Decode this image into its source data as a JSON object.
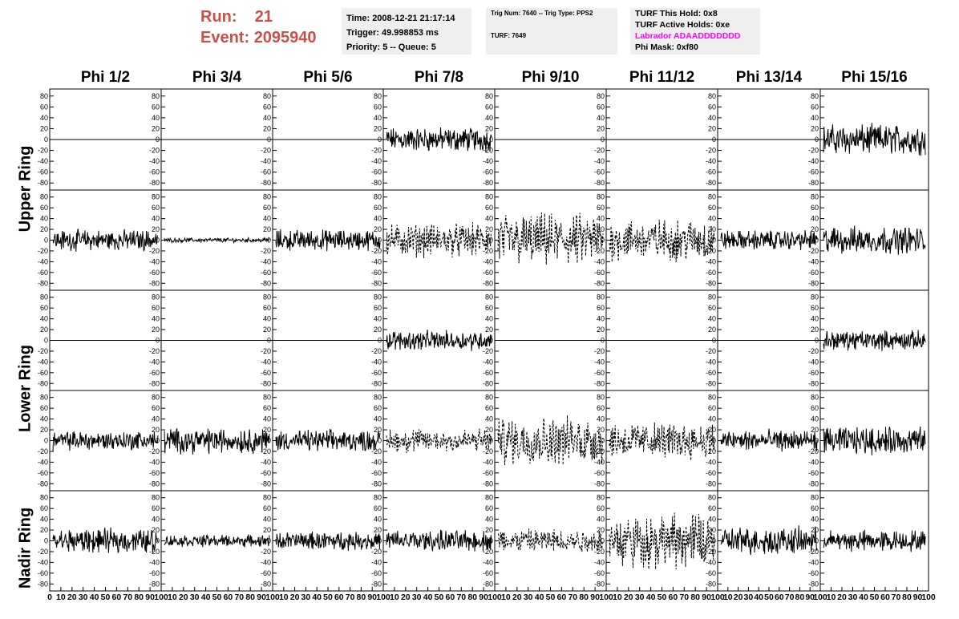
{
  "header": {
    "run_label": "Run:",
    "run_value": "21",
    "event_label": "Event:",
    "event_value": "2095940"
  },
  "time_box": {
    "time": "Time: 2008-12-21 21:17:14",
    "trigger": "Trigger: 49.998853 ms",
    "priority": "Priority: 5 -- Queue: 5"
  },
  "trig_box": {
    "trig": "Trig Num: 7640 -- Trig Type: PPS2",
    "turf": "TURF: 7649"
  },
  "turf_box": {
    "this_hold": "TURF This Hold: 0x8",
    "active_holds": "TURF Active Holds: 0xe",
    "labrador": "Labrador ADAADDDDDDD",
    "phi_mask": "Phi Mask: 0xf80"
  },
  "colors": {
    "run_text": "#c8504c",
    "labrador_text": "#ff00ff",
    "info_box_bg": "#efefef",
    "trace": "#000000"
  },
  "chart_data": {
    "type": "line",
    "columns": [
      "Phi 1/2",
      "Phi 3/4",
      "Phi 5/6",
      "Phi 7/8",
      "Phi 9/10",
      "Phi 11/12",
      "Phi 13/14",
      "Phi 15/16"
    ],
    "ring_labels": [
      "Upper Ring",
      "Lower Ring",
      "Nadir Ring"
    ],
    "ylim": [
      -90,
      90
    ],
    "xlim": [
      0,
      100
    ],
    "y_ticks": [
      80,
      60,
      40,
      20,
      0,
      -20,
      -40,
      -60,
      -80
    ],
    "x_ticks": [
      "0",
      "10",
      "20",
      "30",
      "40",
      "50",
      "60",
      "70",
      "80",
      "90",
      "100"
    ],
    "grid": false,
    "panel_rows": [
      {
        "panels": [
          {
            "style": "flat",
            "amp": 0
          },
          {
            "style": "flat",
            "amp": 0
          },
          {
            "style": "flat",
            "amp": 0
          },
          {
            "style": "solid",
            "amp": 16
          },
          {
            "style": "flat",
            "amp": 0
          },
          {
            "style": "flat",
            "amp": 0
          },
          {
            "style": "flat",
            "amp": 0
          },
          {
            "style": "solid",
            "amp": 20
          }
        ]
      },
      {
        "panels": [
          {
            "style": "solid",
            "amp": 14
          },
          {
            "style": "solid",
            "amp": 3
          },
          {
            "style": "solid",
            "amp": 14
          },
          {
            "style": "dashed",
            "amp": 22
          },
          {
            "style": "dashed",
            "amp": 35
          },
          {
            "style": "dashed",
            "amp": 28
          },
          {
            "style": "solid",
            "amp": 13
          },
          {
            "style": "solid",
            "amp": 18
          }
        ]
      },
      {
        "panels": [
          {
            "style": "flat",
            "amp": 0
          },
          {
            "style": "flat",
            "amp": 0
          },
          {
            "style": "flat",
            "amp": 0
          },
          {
            "style": "solid",
            "amp": 13
          },
          {
            "style": "flat",
            "amp": 0
          },
          {
            "style": "flat",
            "amp": 0
          },
          {
            "style": "flat",
            "amp": 0
          },
          {
            "style": "solid",
            "amp": 13
          }
        ]
      },
      {
        "panels": [
          {
            "style": "solid",
            "amp": 13
          },
          {
            "style": "solid",
            "amp": 17
          },
          {
            "style": "solid",
            "amp": 14
          },
          {
            "style": "dashed",
            "amp": 16
          },
          {
            "style": "dashed",
            "amp": 32
          },
          {
            "style": "dashed",
            "amp": 24
          },
          {
            "style": "solid",
            "amp": 14
          },
          {
            "style": "solid",
            "amp": 18
          }
        ]
      },
      {
        "panels": [
          {
            "style": "solid",
            "amp": 16
          },
          {
            "style": "solid",
            "amp": 8
          },
          {
            "style": "solid",
            "amp": 12
          },
          {
            "style": "solid",
            "amp": 14
          },
          {
            "style": "dashed",
            "amp": 16
          },
          {
            "style": "dashed",
            "amp": 36
          },
          {
            "style": "solid",
            "amp": 18
          },
          {
            "style": "solid",
            "amp": 14
          }
        ]
      }
    ]
  }
}
